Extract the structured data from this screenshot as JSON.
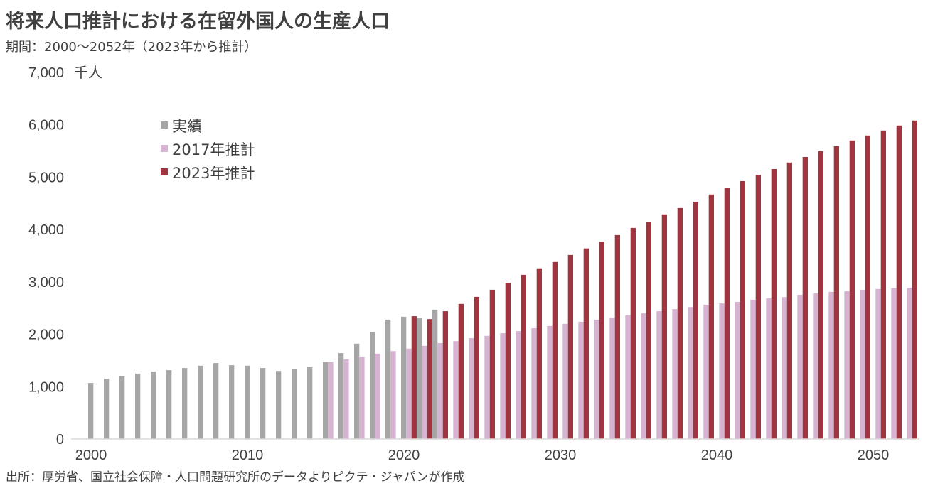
{
  "title": "将来人口推計における在留外国人の生産人口",
  "subtitle": "期間：2000～2052年（2023年から推計）",
  "source": "出所：厚労省、国立社会保障・人口問題研究所のデータよりピクテ・ジャパンが作成",
  "chart_data": {
    "type": "bar",
    "title": "将来人口推計における在留外国人の生産人口",
    "ylabel": "千人",
    "ylim": [
      0,
      7000
    ],
    "yticks": [
      "0",
      "1,000",
      "2,000",
      "3,000",
      "4,000",
      "5,000",
      "6,000",
      "7,000"
    ],
    "xticks": [
      "2000",
      "2010",
      "2020",
      "2030",
      "2040",
      "2050"
    ],
    "grid": false,
    "legend": "top-left",
    "x_start": 2000,
    "x_end": 2052,
    "series": [
      {
        "name": "実績",
        "color": "#a6a6a6",
        "start": 2000,
        "values": [
          1070,
          1150,
          1195,
          1250,
          1290,
          1315,
          1355,
          1400,
          1450,
          1410,
          1400,
          1355,
          1300,
          1330,
          1370,
          1465,
          1640,
          1820,
          2035,
          2280,
          2335,
          2305,
          2470
        ]
      },
      {
        "name": "2017年推計",
        "color": "#d6b4d1",
        "start": 2015,
        "values": [
          1465,
          1520,
          1575,
          1630,
          1680,
          1725,
          1780,
          1830,
          1870,
          1925,
          1970,
          2020,
          2060,
          2115,
          2160,
          2200,
          2240,
          2280,
          2320,
          2360,
          2400,
          2440,
          2480,
          2520,
          2565,
          2590,
          2620,
          2660,
          2685,
          2710,
          2755,
          2780,
          2810,
          2820,
          2850,
          2865,
          2880,
          2890
        ]
      },
      {
        "name": "2023年推計",
        "color": "#a0353f",
        "start": 2020,
        "values": [
          2345,
          2290,
          2440,
          2580,
          2715,
          2850,
          2985,
          3135,
          3260,
          3380,
          3515,
          3640,
          3770,
          3895,
          4030,
          4150,
          4290,
          4410,
          4530,
          4670,
          4800,
          4925,
          5045,
          5155,
          5280,
          5385,
          5495,
          5590,
          5700,
          5795,
          5890,
          5985,
          6080
        ]
      }
    ]
  }
}
